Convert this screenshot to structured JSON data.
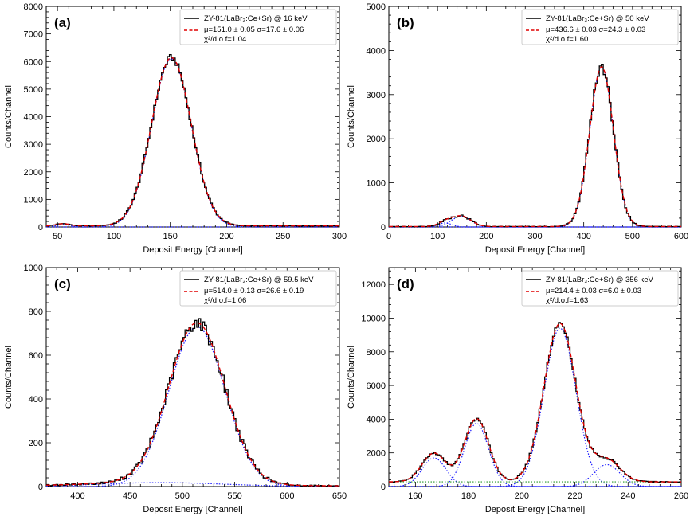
{
  "figure": {
    "x_label": "Deposit Energy [Channel]",
    "y_label": "Counts/Channel"
  },
  "chart_data": [
    {
      "panel": "(a)",
      "type": "line",
      "xlim": [
        40,
        300
      ],
      "ylim": [
        0,
        8000
      ],
      "xticks": [
        50,
        100,
        150,
        200,
        250,
        300
      ],
      "yticks": [
        0,
        1000,
        2000,
        3000,
        4000,
        5000,
        6000,
        7000,
        8000
      ],
      "xlabel": "Deposit Energy [Channel]",
      "ylabel": "Counts/Channel",
      "legend": {
        "position": "top-right",
        "data_label": "ZY-81(LaBr₃:Ce+Sr) @ 16 keV",
        "fit_label": "μ=151.0 ± 0.05 σ=17.6 ± 0.06",
        "chi_label": "χ²/d.o.f=1.04"
      },
      "peaks": [
        {
          "mu": 151.0,
          "sigma": 17.6,
          "amplitude": 6100
        },
        {
          "mu": 55,
          "sigma": 6,
          "amplitude": 80
        }
      ],
      "background": 40
    },
    {
      "panel": "(b)",
      "type": "line",
      "xlim": [
        0,
        600
      ],
      "ylim": [
        0,
        5000
      ],
      "xticks": [
        0,
        100,
        200,
        300,
        400,
        500,
        600
      ],
      "yticks": [
        0,
        1000,
        2000,
        3000,
        4000,
        5000
      ],
      "xlabel": "Deposit Energy [Channel]",
      "ylabel": "Counts/Channel",
      "legend": {
        "position": "top-right",
        "data_label": "ZY-81(LaBr₃:Ce+Sr) @ 50 keV",
        "fit_label": "μ=436.6 ± 0.03 σ=24.3 ± 0.03",
        "chi_label": "χ²/d.o.f=1.60"
      },
      "peaks": [
        {
          "mu": 436.6,
          "sigma": 24.3,
          "amplitude": 3620
        },
        {
          "mu": 148,
          "sigma": 20,
          "amplitude": 240
        },
        {
          "mu": 115,
          "sigma": 14,
          "amplitude": 90
        }
      ],
      "background": 10
    },
    {
      "panel": "(c)",
      "type": "line",
      "xlim": [
        370,
        650
      ],
      "ylim": [
        0,
        1000
      ],
      "xticks": [
        400,
        450,
        500,
        550,
        600,
        650
      ],
      "yticks": [
        0,
        200,
        400,
        600,
        800,
        1000
      ],
      "xlabel": "Deposit Energy [Channel]",
      "ylabel": "Counts/Channel",
      "legend": {
        "position": "top-right",
        "data_label": "ZY-81(LaBr₃:Ce+Sr) @ 59.5 keV",
        "fit_label": "μ=514.0 ± 0.13 σ=26.6 ± 0.19",
        "chi_label": "χ²/d.o.f=1.06"
      },
      "peaks": [
        {
          "mu": 514.0,
          "sigma": 26.6,
          "amplitude": 730
        },
        {
          "mu": 480,
          "sigma": 60,
          "amplitude": 18
        }
      ],
      "background": 3
    },
    {
      "panel": "(d)",
      "type": "line",
      "xlim": [
        150,
        260
      ],
      "ylim": [
        0,
        13000
      ],
      "xticks": [
        160,
        180,
        200,
        220,
        240,
        260
      ],
      "yticks": [
        0,
        2000,
        4000,
        6000,
        8000,
        10000,
        12000
      ],
      "xlabel": "Deposit Energy [Channel]",
      "ylabel": "Counts/Channel",
      "legend": {
        "position": "top-right",
        "data_label": "ZY-81(LaBr₃:Ce+Sr) @ 356 keV",
        "fit_label": "μ=214.4 ± 0.03 σ=6.0 ± 0.03",
        "chi_label": "χ²/d.o.f=1.63"
      },
      "peaks": [
        {
          "mu": 214.4,
          "sigma": 6.0,
          "amplitude": 9400
        },
        {
          "mu": 183,
          "sigma": 4.5,
          "amplitude": 3750
        },
        {
          "mu": 167,
          "sigma": 4.5,
          "amplitude": 1700
        },
        {
          "mu": 232,
          "sigma": 5,
          "amplitude": 1300
        }
      ],
      "background": 280
    }
  ]
}
